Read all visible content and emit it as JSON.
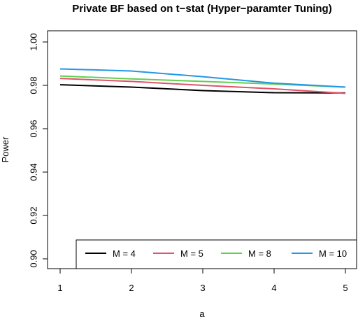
{
  "chart_data": {
    "type": "line",
    "title": "Private BF based on t−stat (Hyper−paramter Tuning)",
    "xlabel": "a",
    "ylabel": "Power",
    "x": [
      1,
      2,
      3,
      4,
      5
    ],
    "x_ticks": [
      "1",
      "2",
      "3",
      "4",
      "5"
    ],
    "xlim": [
      1,
      5
    ],
    "ylim": [
      0.9,
      1.0
    ],
    "y_ticks": [
      "0.90",
      "0.92",
      "0.94",
      "0.96",
      "0.98",
      "1.00"
    ],
    "grid": false,
    "legend_position": "bottom-right",
    "series": [
      {
        "name": "M = 4",
        "color": "#000000",
        "values": [
          0.9803,
          0.9792,
          0.9776,
          0.9766,
          0.9765
        ]
      },
      {
        "name": "M = 5",
        "color": "#DF536B",
        "values": [
          0.9832,
          0.9818,
          0.98,
          0.9784,
          0.9763
        ]
      },
      {
        "name": "M = 8",
        "color": "#61D04F",
        "values": [
          0.9843,
          0.983,
          0.9818,
          0.9806,
          0.9792
        ]
      },
      {
        "name": "M = 10",
        "color": "#2297E6",
        "values": [
          0.9876,
          0.9866,
          0.984,
          0.981,
          0.9792
        ]
      }
    ]
  }
}
